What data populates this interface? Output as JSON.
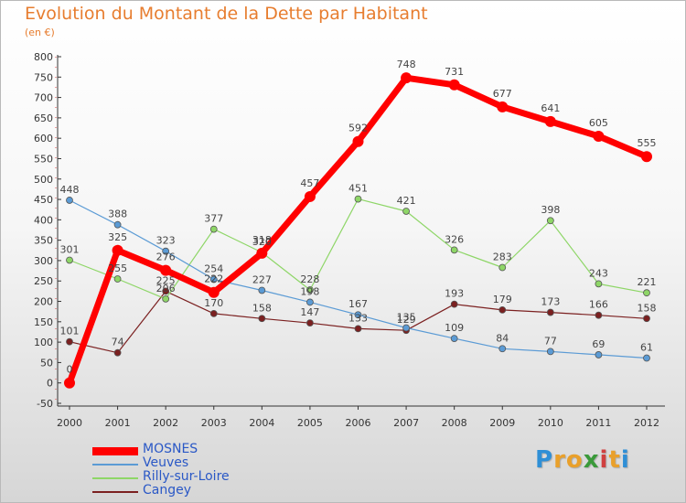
{
  "title": "Evolution du Montant de la Dette par Habitant",
  "subtitle": "(en €)",
  "chart_data": {
    "type": "line",
    "title": "Evolution du Montant de la Dette par Habitant",
    "ylabel": "(en €)",
    "xlabel": "",
    "x": [
      "2000",
      "2001",
      "2002",
      "2003",
      "2004",
      "2005",
      "2006",
      "2007",
      "2008",
      "2009",
      "2010",
      "2011",
      "2012"
    ],
    "ylim": [
      -50,
      800
    ],
    "yticks": [
      -50,
      0,
      50,
      100,
      150,
      200,
      250,
      300,
      350,
      400,
      450,
      500,
      550,
      600,
      650,
      700,
      750,
      800
    ],
    "grid": false,
    "legend_position": "bottom-left",
    "series": [
      {
        "name": "MOSNES",
        "color": "#ff0000",
        "line_width": 7,
        "marker_radius": 6,
        "values": [
          0,
          325,
          276,
          222,
          318,
          457,
          592,
          748,
          731,
          677,
          641,
          605,
          555
        ]
      },
      {
        "name": "Veuves",
        "color": "#5b9bd5",
        "line_width": 1.2,
        "marker_radius": 3.5,
        "values": [
          448,
          388,
          323,
          254,
          227,
          198,
          167,
          135,
          109,
          84,
          77,
          69,
          61
        ]
      },
      {
        "name": "Rilly-sur-Loire",
        "color": "#8ed667",
        "line_width": 1.2,
        "marker_radius": 3.5,
        "values": [
          301,
          255,
          206,
          377,
          320,
          228,
          451,
          421,
          326,
          283,
          398,
          243,
          221
        ]
      },
      {
        "name": "Cangey",
        "color": "#7b2020",
        "line_width": 1.2,
        "marker_radius": 3.5,
        "values": [
          101,
          74,
          225,
          170,
          158,
          147,
          133,
          129,
          193,
          179,
          173,
          166,
          158
        ]
      }
    ]
  },
  "logo": {
    "letters": [
      "P",
      "r",
      "o",
      "x",
      "i",
      "t",
      "i"
    ],
    "colors": [
      "#2f8fd6",
      "#e9a02b",
      "#e9a02b",
      "#3a9a3a",
      "#d04040",
      "#e9a02b",
      "#2f8fd6"
    ]
  }
}
